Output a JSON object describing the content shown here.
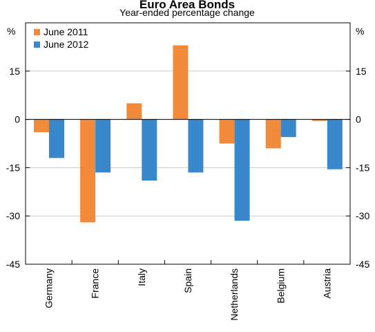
{
  "chart_data": {
    "type": "bar",
    "title": "Euro Area Bonds",
    "subtitle": "Year-ended percentage change",
    "unit_left": "%",
    "unit_right": "%",
    "categories": [
      "Germany",
      "France",
      "Italy",
      "Spain",
      "Netherlands",
      "Belgium",
      "Austria"
    ],
    "series": [
      {
        "name": "June 2011",
        "color": "#f28a3c",
        "values": [
          -4,
          -32,
          5,
          23,
          -7.5,
          -9,
          -0.5
        ]
      },
      {
        "name": "June 2012",
        "color": "#3a88cc",
        "values": [
          -12,
          -16.5,
          -19,
          -16.5,
          -31.5,
          -5.5,
          -15.5
        ]
      }
    ],
    "ylim": [
      -45,
      30
    ],
    "yticks": [
      15,
      0,
      -15,
      -30,
      -45
    ],
    "ytick_labels": [
      "15",
      "0",
      "-15",
      "-30",
      "-45"
    ],
    "grid": true,
    "legend_position": "top-left"
  }
}
